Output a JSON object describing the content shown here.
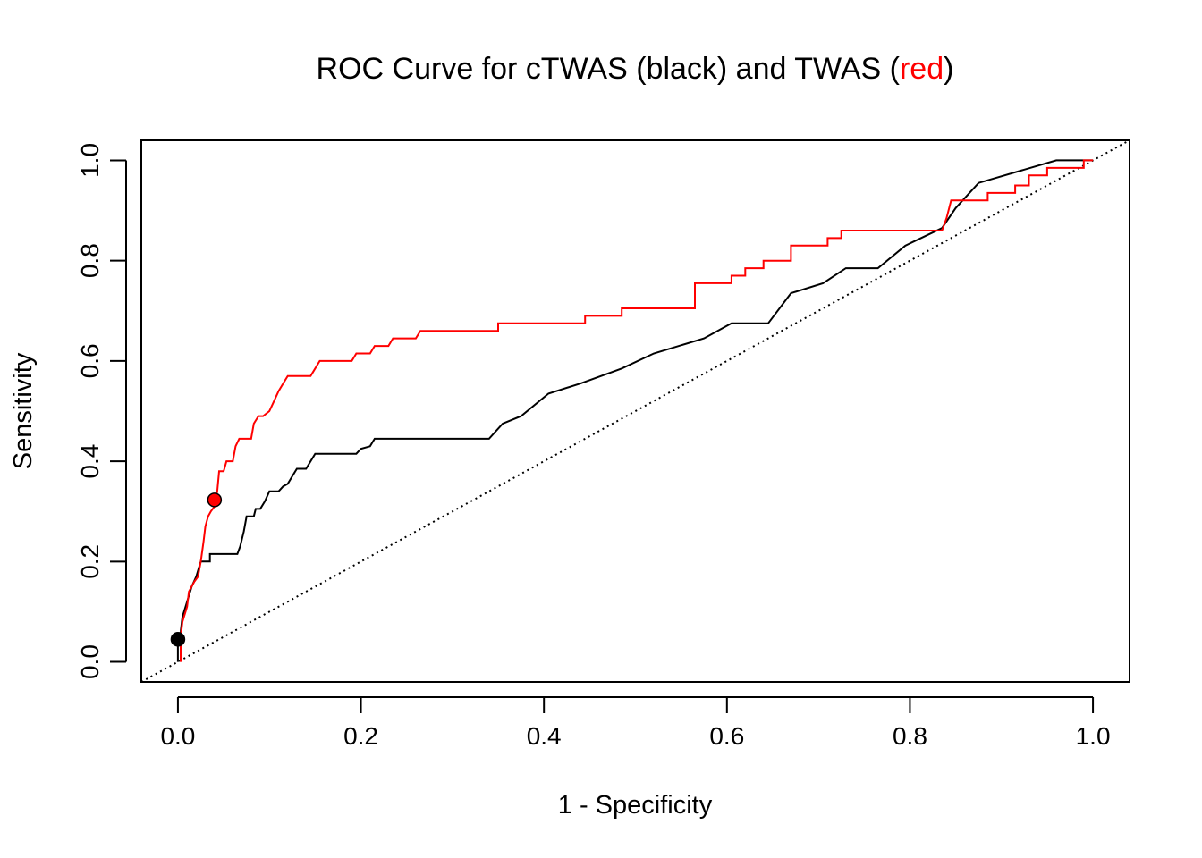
{
  "chart_data": {
    "type": "line",
    "title": {
      "prefix": "ROC Curve for cTWAS (black) and TWAS (",
      "highlight": "red",
      "suffix": ")"
    },
    "xlabel": "1 - Specificity",
    "ylabel": "Sensitivity",
    "xlim": [
      -0.04,
      1.04
    ],
    "ylim": [
      -0.04,
      1.04
    ],
    "xticks": [
      "0.0",
      "0.2",
      "0.4",
      "0.6",
      "0.8",
      "1.0"
    ],
    "yticks": [
      "0.0",
      "0.2",
      "0.4",
      "0.6",
      "0.8",
      "1.0"
    ],
    "grid": false,
    "legend": "none",
    "reference_line": {
      "from": [
        0,
        0
      ],
      "to": [
        1,
        1
      ],
      "style": "dotted"
    },
    "series": [
      {
        "color": "#000000",
        "points": [
          [
            0,
            0
          ],
          [
            0,
            0.03
          ],
          [
            0.003,
            0.06
          ],
          [
            0.005,
            0.09
          ],
          [
            0.01,
            0.12
          ],
          [
            0.015,
            0.15
          ],
          [
            0.02,
            0.17
          ],
          [
            0.025,
            0.2
          ],
          [
            0.035,
            0.2
          ],
          [
            0.035,
            0.215
          ],
          [
            0.06,
            0.215
          ],
          [
            0.065,
            0.215
          ],
          [
            0.068,
            0.23
          ],
          [
            0.072,
            0.26
          ],
          [
            0.075,
            0.29
          ],
          [
            0.083,
            0.29
          ],
          [
            0.085,
            0.305
          ],
          [
            0.09,
            0.305
          ],
          [
            0.095,
            0.32
          ],
          [
            0.1,
            0.34
          ],
          [
            0.11,
            0.34
          ],
          [
            0.115,
            0.35
          ],
          [
            0.12,
            0.355
          ],
          [
            0.125,
            0.37
          ],
          [
            0.13,
            0.385
          ],
          [
            0.14,
            0.385
          ],
          [
            0.145,
            0.4
          ],
          [
            0.15,
            0.415
          ],
          [
            0.195,
            0.415
          ],
          [
            0.2,
            0.425
          ],
          [
            0.21,
            0.43
          ],
          [
            0.215,
            0.445
          ],
          [
            0.34,
            0.445
          ],
          [
            0.355,
            0.475
          ],
          [
            0.375,
            0.49
          ],
          [
            0.405,
            0.535
          ],
          [
            0.44,
            0.555
          ],
          [
            0.485,
            0.585
          ],
          [
            0.52,
            0.615
          ],
          [
            0.575,
            0.645
          ],
          [
            0.605,
            0.675
          ],
          [
            0.645,
            0.675
          ],
          [
            0.67,
            0.735
          ],
          [
            0.705,
            0.755
          ],
          [
            0.73,
            0.785
          ],
          [
            0.765,
            0.785
          ],
          [
            0.795,
            0.83
          ],
          [
            0.835,
            0.865
          ],
          [
            0.85,
            0.905
          ],
          [
            0.875,
            0.955
          ],
          [
            0.96,
            1.0
          ],
          [
            1.0,
            1.0
          ]
        ]
      },
      {
        "color": "#ff0000",
        "points": [
          [
            0.003,
            0
          ],
          [
            0.003,
            0.05
          ],
          [
            0.005,
            0.08
          ],
          [
            0.01,
            0.11
          ],
          [
            0.012,
            0.14
          ],
          [
            0.018,
            0.16
          ],
          [
            0.022,
            0.17
          ],
          [
            0.025,
            0.2
          ],
          [
            0.028,
            0.24
          ],
          [
            0.03,
            0.27
          ],
          [
            0.033,
            0.29
          ],
          [
            0.036,
            0.3
          ],
          [
            0.04,
            0.31
          ],
          [
            0.043,
            0.34
          ],
          [
            0.045,
            0.38
          ],
          [
            0.05,
            0.38
          ],
          [
            0.053,
            0.4
          ],
          [
            0.06,
            0.4
          ],
          [
            0.063,
            0.43
          ],
          [
            0.067,
            0.445
          ],
          [
            0.08,
            0.445
          ],
          [
            0.083,
            0.475
          ],
          [
            0.088,
            0.49
          ],
          [
            0.093,
            0.49
          ],
          [
            0.1,
            0.5
          ],
          [
            0.105,
            0.52
          ],
          [
            0.11,
            0.54
          ],
          [
            0.115,
            0.555
          ],
          [
            0.12,
            0.57
          ],
          [
            0.145,
            0.57
          ],
          [
            0.15,
            0.585
          ],
          [
            0.155,
            0.6
          ],
          [
            0.19,
            0.6
          ],
          [
            0.195,
            0.615
          ],
          [
            0.21,
            0.615
          ],
          [
            0.215,
            0.63
          ],
          [
            0.23,
            0.63
          ],
          [
            0.235,
            0.645
          ],
          [
            0.26,
            0.645
          ],
          [
            0.265,
            0.66
          ],
          [
            0.35,
            0.66
          ],
          [
            0.35,
            0.675
          ],
          [
            0.445,
            0.675
          ],
          [
            0.445,
            0.69
          ],
          [
            0.485,
            0.69
          ],
          [
            0.485,
            0.705
          ],
          [
            0.565,
            0.705
          ],
          [
            0.565,
            0.755
          ],
          [
            0.605,
            0.755
          ],
          [
            0.605,
            0.77
          ],
          [
            0.62,
            0.77
          ],
          [
            0.62,
            0.785
          ],
          [
            0.64,
            0.785
          ],
          [
            0.64,
            0.8
          ],
          [
            0.67,
            0.8
          ],
          [
            0.67,
            0.83
          ],
          [
            0.71,
            0.83
          ],
          [
            0.71,
            0.845
          ],
          [
            0.725,
            0.845
          ],
          [
            0.725,
            0.86
          ],
          [
            0.835,
            0.86
          ],
          [
            0.84,
            0.885
          ],
          [
            0.845,
            0.92
          ],
          [
            0.885,
            0.92
          ],
          [
            0.885,
            0.935
          ],
          [
            0.915,
            0.935
          ],
          [
            0.915,
            0.95
          ],
          [
            0.93,
            0.95
          ],
          [
            0.93,
            0.97
          ],
          [
            0.95,
            0.97
          ],
          [
            0.95,
            0.985
          ],
          [
            0.99,
            0.985
          ],
          [
            0.99,
            1.0
          ],
          [
            1.0,
            1.0
          ]
        ]
      }
    ],
    "markers": [
      {
        "x": 0.0,
        "y": 0.045,
        "color": "#000000"
      },
      {
        "x": 0.04,
        "y": 0.323,
        "color": "#ff0000"
      }
    ]
  }
}
